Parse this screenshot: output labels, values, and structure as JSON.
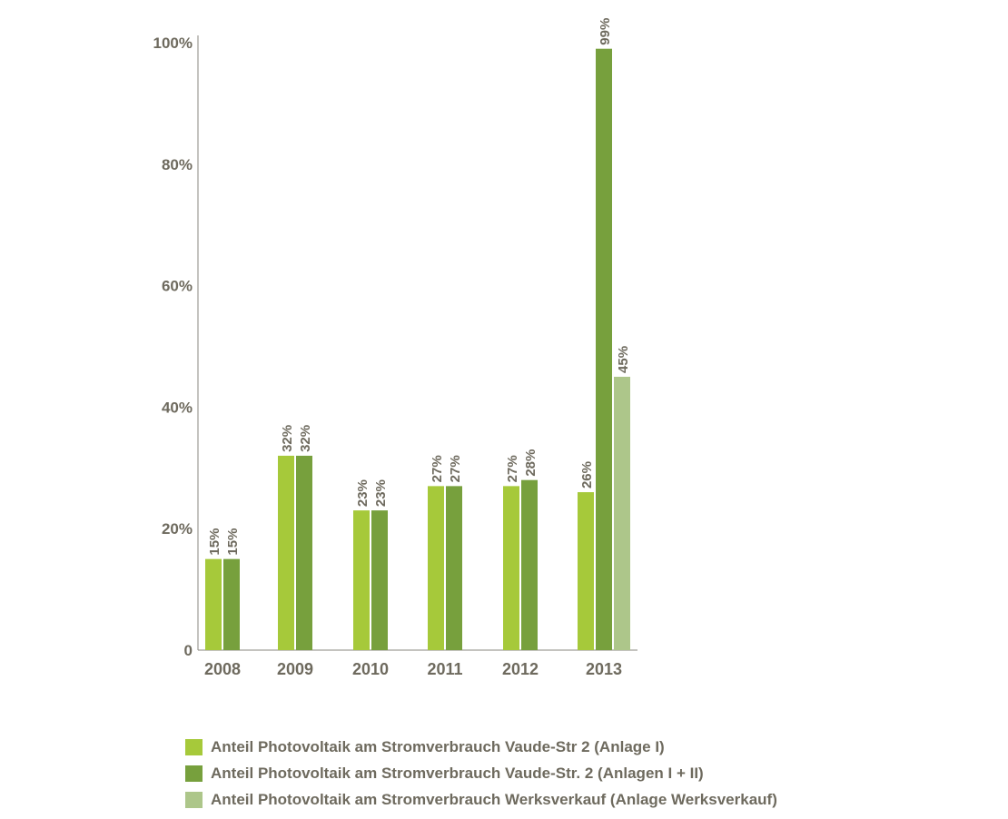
{
  "chart_data": {
    "type": "bar",
    "categories": [
      "2008",
      "2009",
      "2010",
      "2011",
      "2012",
      "2013"
    ],
    "series": [
      {
        "name": "Anteil Photovoltaik am Stromverbrauch Vaude-Str 2 (Anlage I)",
        "color": "#a6c93a",
        "values": [
          15,
          32,
          23,
          27,
          27,
          26
        ],
        "labels": [
          "15%",
          "32%",
          "23%",
          "27%",
          "27%",
          "26%"
        ]
      },
      {
        "name": "Anteil Photovoltaik am Stromverbrauch Vaude-Str. 2 (Anlagen I + II)",
        "color": "#77a03d",
        "values": [
          15,
          32,
          23,
          27,
          28,
          99
        ],
        "labels": [
          "15%",
          "32%",
          "23%",
          "27%",
          "28%",
          "99%"
        ]
      },
      {
        "name": "Anteil Photovoltaik am Stromverbrauch Werksverkauf (Anlage Werksverkauf)",
        "color": "#adc68a",
        "values": [
          null,
          null,
          null,
          null,
          null,
          45
        ],
        "labels": [
          null,
          null,
          null,
          null,
          null,
          "45%"
        ]
      }
    ],
    "yticks": [
      "0",
      "20%",
      "40%",
      "60%",
      "80%",
      "100%"
    ],
    "ylim": [
      0,
      100
    ],
    "grid": false,
    "legend_position": "bottom"
  }
}
